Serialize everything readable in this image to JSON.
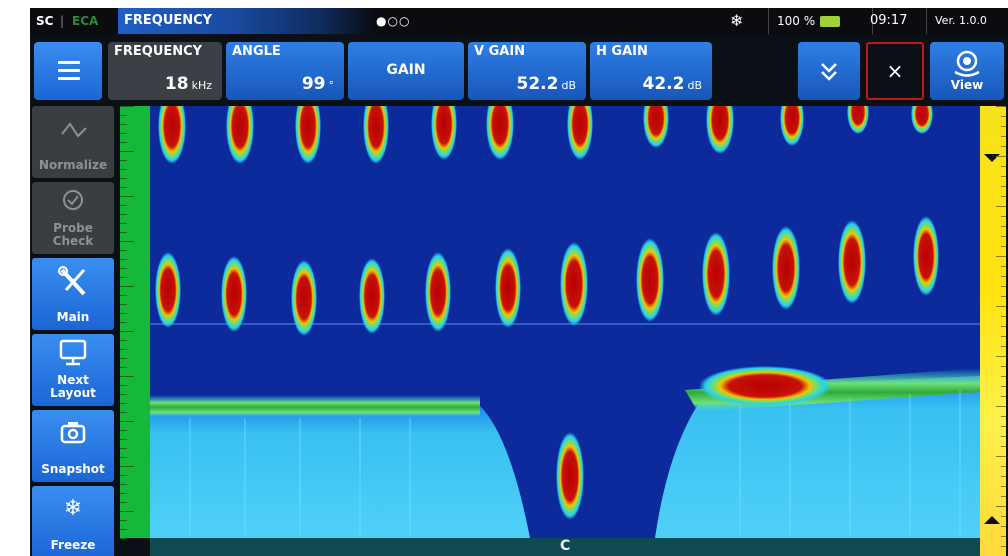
{
  "status": {
    "sc_label": "SC",
    "separator": "|",
    "eca_label": "ECA",
    "mode_title": "FREQUENCY",
    "page_indicator": "●○○",
    "freeze_indicator_icon": "snowflake-icon",
    "battery_percent": "100 %",
    "time": "09:17",
    "version": "Ver. 1.0.0"
  },
  "params": {
    "frequency": {
      "label": "FREQUENCY",
      "value": "18",
      "unit": "kHz"
    },
    "angle": {
      "label": "ANGLE",
      "value": "99",
      "unit": "°"
    },
    "gain": {
      "label": "GAIN"
    },
    "vgain": {
      "label": "V GAIN",
      "value": "52.2",
      "unit": "dB"
    },
    "hgain": {
      "label": "H GAIN",
      "value": "42.2",
      "unit": "dB"
    },
    "close_symbol": "×",
    "view_label": "View"
  },
  "sidebar": {
    "items": [
      {
        "label": "Normalize",
        "icon": "waveform-icon",
        "state": "disabled"
      },
      {
        "label": "Probe Check",
        "icon": "check-circle-icon",
        "state": "disabled"
      },
      {
        "label": "Main",
        "icon": "tools-icon",
        "state": "active"
      },
      {
        "label": "Next Layout",
        "icon": "monitor-icon",
        "state": "active"
      },
      {
        "label": "Snapshot",
        "icon": "camera-icon",
        "state": "active"
      },
      {
        "label": "Freeze",
        "icon": "snowflake-icon",
        "state": "active"
      }
    ]
  },
  "plot": {
    "x_center_label": "C",
    "colors": {
      "background": "#0c2a9c",
      "signal_high": "#b80000",
      "signal_mid": "#f2c400",
      "signal_low": "#2ad0f0",
      "y_axis": "#16b83a",
      "colorbar": "#f6e21a"
    }
  }
}
